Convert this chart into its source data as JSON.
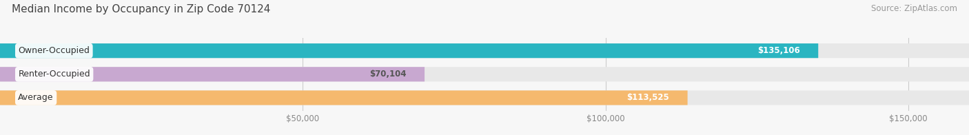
{
  "title": "Median Income by Occupancy in Zip Code 70124",
  "source": "Source: ZipAtlas.com",
  "categories": [
    "Owner-Occupied",
    "Renter-Occupied",
    "Average"
  ],
  "values": [
    135106,
    70104,
    113525
  ],
  "bar_colors": [
    "#2ab5c1",
    "#c8a8d0",
    "#f5b96e"
  ],
  "label_colors": [
    "#ffffff",
    "#555555",
    "#ffffff"
  ],
  "value_labels": [
    "$135,106",
    "$70,104",
    "$113,525"
  ],
  "x_tick_vals": [
    50000,
    100000,
    150000
  ],
  "x_tick_labels": [
    "$50,000",
    "$100,000",
    "$150,000"
  ],
  "xlim": [
    0,
    160000
  ],
  "background_color": "#f7f7f7",
  "bar_bg_color": "#e8e8e8",
  "title_fontsize": 11,
  "source_fontsize": 8.5,
  "label_fontsize": 9,
  "value_fontsize": 8.5
}
